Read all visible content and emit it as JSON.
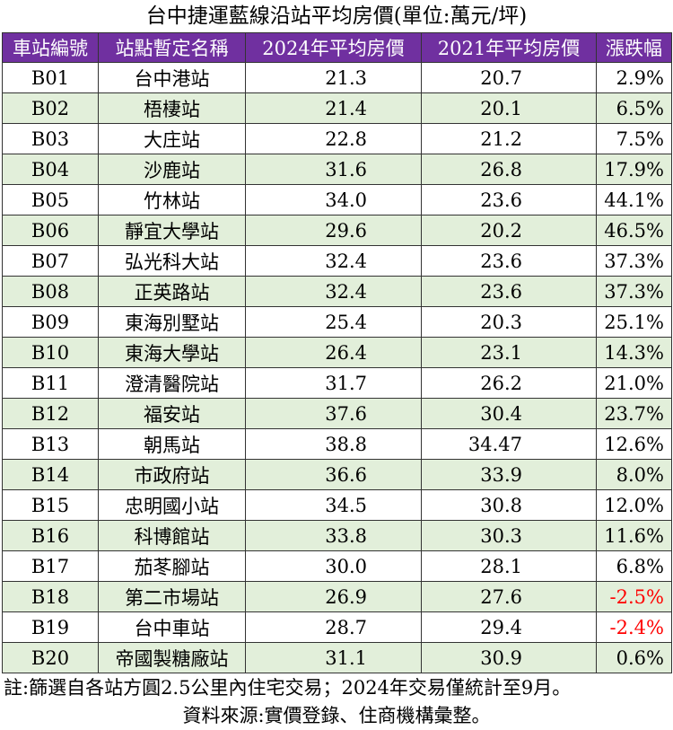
{
  "title": "台中捷運藍線沿站平均房價(單位:萬元/坪)",
  "headers": [
    "車站編號",
    "站點暫定名稱",
    "2024年平均房價",
    "2021年平均房價",
    "漲跌幅"
  ],
  "rows": [
    {
      "id": "B01",
      "name": "台中港站",
      "p2024": "21.3",
      "p2021": "20.7",
      "change": "2.9%"
    },
    {
      "id": "B02",
      "name": "梧棲站",
      "p2024": "21.4",
      "p2021": "20.1",
      "change": "6.5%"
    },
    {
      "id": "B03",
      "name": "大庄站",
      "p2024": "22.8",
      "p2021": "21.2",
      "change": "7.5%"
    },
    {
      "id": "B04",
      "name": "沙鹿站",
      "p2024": "31.6",
      "p2021": "26.8",
      "change": "17.9%"
    },
    {
      "id": "B05",
      "name": "竹林站",
      "p2024": "34.0",
      "p2021": "23.6",
      "change": "44.1%"
    },
    {
      "id": "B06",
      "name": "靜宜大學站",
      "p2024": "29.6",
      "p2021": "20.2",
      "change": "46.5%"
    },
    {
      "id": "B07",
      "name": "弘光科大站",
      "p2024": "32.4",
      "p2021": "23.6",
      "change": "37.3%"
    },
    {
      "id": "B08",
      "name": "正英路站",
      "p2024": "32.4",
      "p2021": "23.6",
      "change": "37.3%"
    },
    {
      "id": "B09",
      "name": "東海別墅站",
      "p2024": "25.4",
      "p2021": "20.3",
      "change": "25.1%"
    },
    {
      "id": "B10",
      "name": "東海大學站",
      "p2024": "26.4",
      "p2021": "23.1",
      "change": "14.3%"
    },
    {
      "id": "B11",
      "name": "澄清醫院站",
      "p2024": "31.7",
      "p2021": "26.2",
      "change": "21.0%"
    },
    {
      "id": "B12",
      "name": "福安站",
      "p2024": "37.6",
      "p2021": "30.4",
      "change": "23.7%"
    },
    {
      "id": "B13",
      "name": "朝馬站",
      "p2024": "38.8",
      "p2021": "34.47",
      "change": "12.6%"
    },
    {
      "id": "B14",
      "name": "市政府站",
      "p2024": "36.6",
      "p2021": "33.9",
      "change": "8.0%"
    },
    {
      "id": "B15",
      "name": "忠明國小站",
      "p2024": "34.5",
      "p2021": "30.8",
      "change": "12.0%"
    },
    {
      "id": "B16",
      "name": "科博館站",
      "p2024": "33.8",
      "p2021": "30.3",
      "change": "11.6%"
    },
    {
      "id": "B17",
      "name": "茄苳腳站",
      "p2024": "30.0",
      "p2021": "28.1",
      "change": "6.8%"
    },
    {
      "id": "B18",
      "name": "第二市場站",
      "p2024": "26.9",
      "p2021": "27.6",
      "change": "-2.5%",
      "negative": true
    },
    {
      "id": "B19",
      "name": "台中車站",
      "p2024": "28.7",
      "p2021": "29.4",
      "change": "-2.4%",
      "negative": true
    },
    {
      "id": "B20",
      "name": "帝國製糖廠站",
      "p2024": "31.1",
      "p2021": "30.9",
      "change": "0.6%"
    }
  ],
  "note": "註:篩選自各站方圓2.5公里內住宅交易；2024年交易僅統計至9月。",
  "source": "資料來源:實價登錄、住商機構彙整。",
  "colors": {
    "header_bg": "#7030a0",
    "header_text": "#ffffff",
    "shade_row": "#e2efda",
    "negative": "#ff0000"
  }
}
